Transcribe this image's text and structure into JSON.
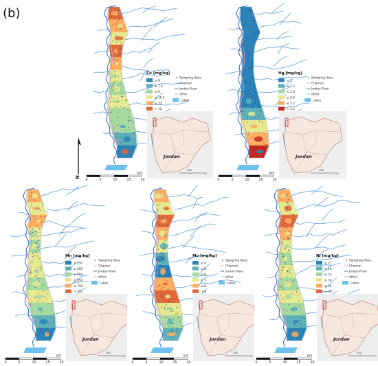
{
  "figure_label": "(b)",
  "legend_common": {
    "sampling_sites": "Sampling Sites",
    "channel": "Channel",
    "jordan_river": "Jordan River",
    "other": "other",
    "lakes": "Lakes"
  },
  "inset_label": "Jordan",
  "inset_scale": "200",
  "inset_scale_unit": "km",
  "scale_ticks": [
    "0",
    "5",
    "10",
    "15",
    "20"
  ],
  "scale_unit": "km",
  "north_letter": "N",
  "colors": {
    "class1": "#2b83ba",
    "class2": "#5eb0b8",
    "class3": "#a6d9a0",
    "class4": "#e5e98f",
    "class5": "#fdae61",
    "class6": "#e06a3c",
    "class7": "#c62a1f",
    "river": "#4a8fd0",
    "lake": "#6ec1ee",
    "jordan_fill": "#f5e6de",
    "inset_bg": "#eeeeee",
    "site_dot": "#1a2a55"
  },
  "panels": [
    {
      "id": "cu",
      "title": "Cu [mg/kg]",
      "classes": [
        "≤ 6",
        "≤ 7.5",
        "≤ 9",
        "≤ 10.5",
        "≤ 12",
        "> 12"
      ],
      "class_colors": [
        "#2b83ba",
        "#5eb0b8",
        "#a6d9a0",
        "#e5e98f",
        "#fdae61",
        "#e06a3c"
      ],
      "fill_sequence": [
        5,
        4,
        3,
        5,
        4,
        3,
        2,
        3,
        2,
        2,
        1,
        0
      ]
    },
    {
      "id": "hg",
      "title": "Hg [mg/kg]",
      "classes": [
        "≤ 2",
        "≤ 2.2",
        "≤ 2.8",
        "≤ 2.9",
        "≤ 3.2",
        "> 3.2"
      ],
      "class_colors": [
        "#2b83ba",
        "#5eb0b8",
        "#a6d9a0",
        "#e5e98f",
        "#fdae61",
        "#c62a1f"
      ],
      "fill_sequence": [
        0,
        0,
        0,
        0,
        0,
        0,
        0,
        0,
        1,
        3,
        4,
        5
      ]
    },
    {
      "id": "mn",
      "title": "Mn [mg/kg]",
      "classes": [
        "≤ 350",
        "≤ 450",
        "≤ 550",
        "≤ 650",
        "≤ 750",
        "> 750"
      ],
      "class_colors": [
        "#2b83ba",
        "#5eb0b8",
        "#a6d9a0",
        "#e5e98f",
        "#fdae61",
        "#e06a3c"
      ],
      "fill_sequence": [
        4,
        3,
        4,
        3,
        2,
        3,
        3,
        2,
        3,
        2,
        1,
        0
      ]
    },
    {
      "id": "mo",
      "title": "Mo [mg/kg]",
      "classes": [
        "≤ 4",
        "≤ 5",
        "≤ 6",
        "≤ 7",
        "≤ 8",
        "> 8"
      ],
      "class_colors": [
        "#2b83ba",
        "#5eb0b8",
        "#a6d9a0",
        "#e5e98f",
        "#fdae61",
        "#e06a3c"
      ],
      "fill_sequence": [
        4,
        3,
        5,
        4,
        3,
        1,
        0,
        4,
        5,
        3,
        2,
        1
      ]
    },
    {
      "id": "ni",
      "title": "Ni [mg/kg]",
      "classes": [
        "≤ 12",
        "≤ 18",
        "≤ 24",
        "≤ 30",
        "≤ 36",
        "> 36"
      ],
      "class_colors": [
        "#2b83ba",
        "#5eb0b8",
        "#a6d9a0",
        "#e5e98f",
        "#fdae61",
        "#e06a3c"
      ],
      "fill_sequence": [
        4,
        3,
        5,
        4,
        3,
        2,
        3,
        2,
        3,
        2,
        1,
        0
      ]
    }
  ]
}
